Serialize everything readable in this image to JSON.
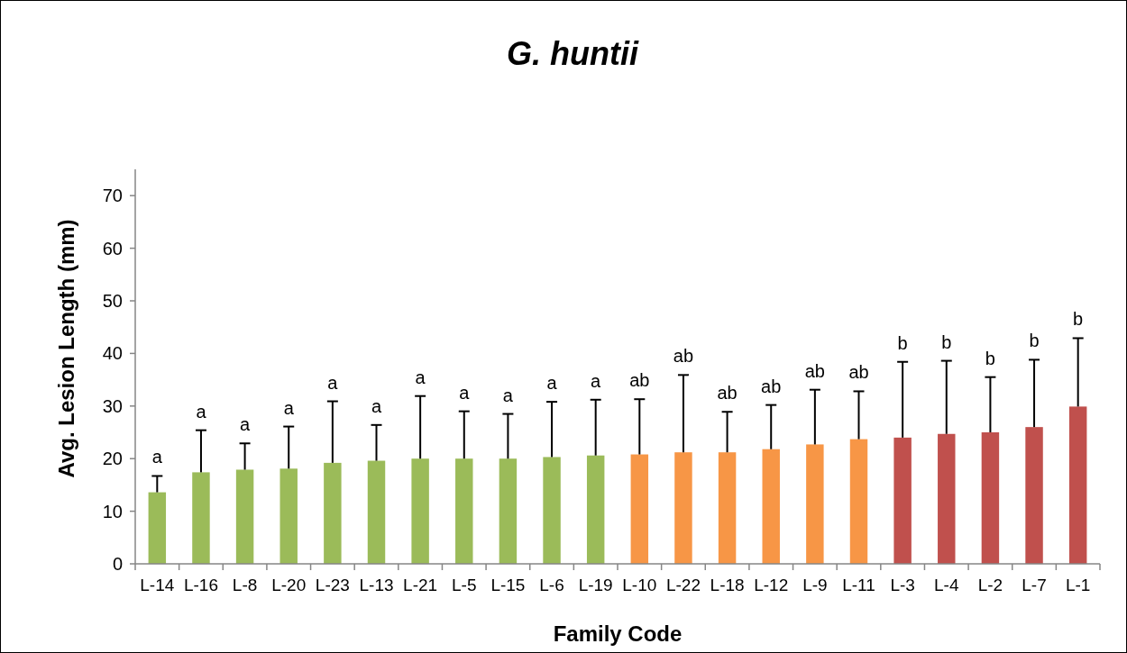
{
  "chart_data": {
    "type": "bar",
    "title": "G. huntii",
    "xlabel": "Family Code",
    "ylabel": "Avg. Lesion Length (mm)",
    "categories": [
      "L-14",
      "L-16",
      "L-8",
      "L-20",
      "L-23",
      "L-13",
      "L-21",
      "L-5",
      "L-15",
      "L-6",
      "L-19",
      "L-10",
      "L-22",
      "L-18",
      "L-12",
      "L-9",
      "L-11",
      "L-3",
      "L-4",
      "L-2",
      "L-7",
      "L-1"
    ],
    "values": [
      13.6,
      17.4,
      17.9,
      18.1,
      19.2,
      19.6,
      20.0,
      20.0,
      20.0,
      20.3,
      20.6,
      20.8,
      21.2,
      21.2,
      21.8,
      22.7,
      23.7,
      24.0,
      24.7,
      25.0,
      26.0,
      29.9
    ],
    "colors": [
      "#9bbb59",
      "#9bbb59",
      "#9bbb59",
      "#9bbb59",
      "#9bbb59",
      "#9bbb59",
      "#9bbb59",
      "#9bbb59",
      "#9bbb59",
      "#9bbb59",
      "#9bbb59",
      "#f79646",
      "#f79646",
      "#f79646",
      "#f79646",
      "#f79646",
      "#f79646",
      "#c0504d",
      "#c0504d",
      "#c0504d",
      "#c0504d",
      "#c0504d"
    ],
    "errors": [
      [
        13.6,
        16.7
      ],
      [
        17.4,
        25.4
      ],
      [
        17.9,
        22.9
      ],
      [
        18.1,
        26.1
      ],
      [
        19.2,
        30.9
      ],
      [
        19.6,
        26.4
      ],
      [
        20.0,
        31.9
      ],
      [
        20.0,
        29.0
      ],
      [
        20.0,
        28.5
      ],
      [
        20.3,
        30.8
      ],
      [
        20.6,
        31.2
      ],
      [
        20.8,
        31.3
      ],
      [
        21.2,
        35.9
      ],
      [
        21.2,
        28.9
      ],
      [
        21.8,
        30.2
      ],
      [
        22.7,
        33.1
      ],
      [
        23.7,
        32.8
      ],
      [
        24.0,
        38.4
      ],
      [
        24.7,
        38.6
      ],
      [
        25.0,
        35.5
      ],
      [
        26.0,
        38.8
      ],
      [
        29.9,
        42.9
      ]
    ],
    "annotations": [
      {
        "text": "a",
        "x": "L-14",
        "y": 16.7
      },
      {
        "text": "a",
        "x": "L-16",
        "y": 25.4
      },
      {
        "text": "a",
        "x": "L-8",
        "y": 22.9
      },
      {
        "text": "a",
        "x": "L-20",
        "y": 26.1
      },
      {
        "text": "a",
        "x": "L-23",
        "y": 30.9
      },
      {
        "text": "a",
        "x": "L-13",
        "y": 26.4
      },
      {
        "text": "a",
        "x": "L-21",
        "y": 31.9
      },
      {
        "text": "a",
        "x": "L-5",
        "y": 29.0
      },
      {
        "text": "a",
        "x": "L-15",
        "y": 28.5
      },
      {
        "text": "a",
        "x": "L-6",
        "y": 30.8
      },
      {
        "text": "a",
        "x": "L-19",
        "y": 31.2
      },
      {
        "text": "ab",
        "x": "L-10",
        "y": 31.3
      },
      {
        "text": "ab",
        "x": "L-22",
        "y": 35.9
      },
      {
        "text": "ab",
        "x": "L-18",
        "y": 28.9
      },
      {
        "text": "ab",
        "x": "L-12",
        "y": 30.2
      },
      {
        "text": "ab",
        "x": "L-9",
        "y": 33.1
      },
      {
        "text": "ab",
        "x": "L-11",
        "y": 32.8
      },
      {
        "text": "b",
        "x": "L-3",
        "y": 38.4
      },
      {
        "text": "b",
        "x": "L-4",
        "y": 38.6
      },
      {
        "text": "b",
        "x": "L-2",
        "y": 35.5
      },
      {
        "text": "b",
        "x": "L-7",
        "y": 38.8
      },
      {
        "text": "b",
        "x": "L-1",
        "y": 42.9
      }
    ],
    "ylim": [
      0,
      75
    ],
    "yticks": [
      0,
      10,
      20,
      30,
      40,
      50,
      60,
      70
    ],
    "grid": false
  }
}
